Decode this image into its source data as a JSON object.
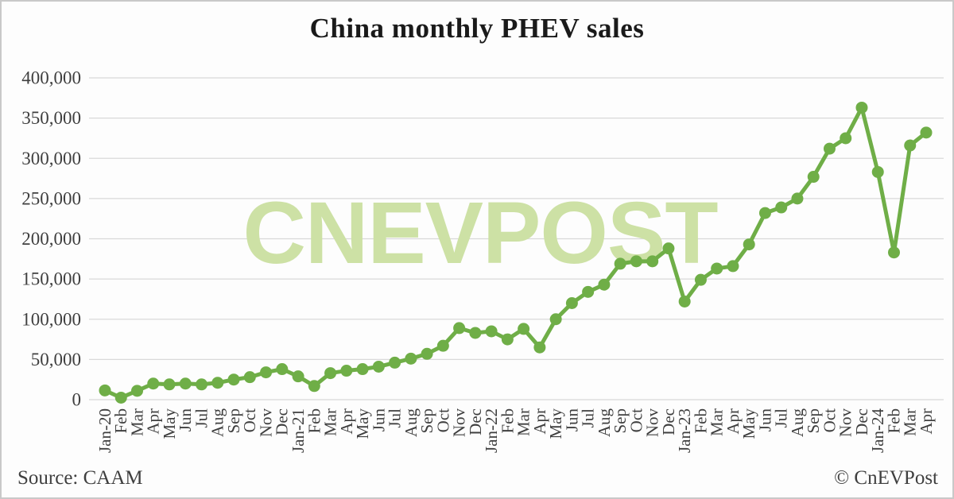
{
  "header": {
    "title": "China monthly PHEV sales"
  },
  "watermark": {
    "text": "CNEVPOST",
    "color": "#cde1a5"
  },
  "footer": {
    "source": "Source: CAAM",
    "credit": "© CnEVPost"
  },
  "chart_data": {
    "type": "line",
    "title": "China monthly PHEV sales",
    "series_name": "China monthly PHEV sales (units)",
    "categories": [
      "Jan-20",
      "Feb",
      "Mar",
      "Apr",
      "May",
      "Jun",
      "Jul",
      "Aug",
      "Sep",
      "Oct",
      "Nov",
      "Dec",
      "Jan-21",
      "Feb",
      "Mar",
      "Apr",
      "May",
      "Jun",
      "Jul",
      "Aug",
      "Sep",
      "Oct",
      "Nov",
      "Dec",
      "Jan-22",
      "Feb",
      "Mar",
      "Apr",
      "May",
      "Jun",
      "Jul",
      "Aug",
      "Sep",
      "Oct",
      "Nov",
      "Dec",
      "Jan-23",
      "Feb",
      "Mar",
      "Apr",
      "May",
      "Jun",
      "Jul",
      "Aug",
      "Sep",
      "Oct",
      "Nov",
      "Dec",
      "Jan-24",
      "Feb",
      "Mar",
      "Apr"
    ],
    "values": [
      11500,
      2500,
      11000,
      20000,
      19000,
      20000,
      19000,
      21000,
      25000,
      28000,
      34000,
      38000,
      29000,
      17000,
      33000,
      36000,
      38000,
      41000,
      46000,
      51000,
      57000,
      67000,
      89000,
      83000,
      85000,
      75000,
      88000,
      65000,
      100000,
      120000,
      134000,
      143000,
      169000,
      172000,
      172000,
      188000,
      122000,
      149000,
      163000,
      166000,
      193000,
      232000,
      239000,
      250000,
      277000,
      312000,
      325000,
      363000,
      283000,
      183000,
      316000,
      332000
    ],
    "ylim": [
      0,
      400000
    ],
    "ytick_step": 50000,
    "ytick_labels": [
      "0",
      "50,000",
      "100,000",
      "150,000",
      "200,000",
      "250,000",
      "300,000",
      "350,000",
      "400,000"
    ],
    "grid": true,
    "legend": "none",
    "line_color": "#6fae47",
    "marker": "circle",
    "gridline_color": "#d9d9d9",
    "axis_text_color": "#3f3f3f"
  }
}
